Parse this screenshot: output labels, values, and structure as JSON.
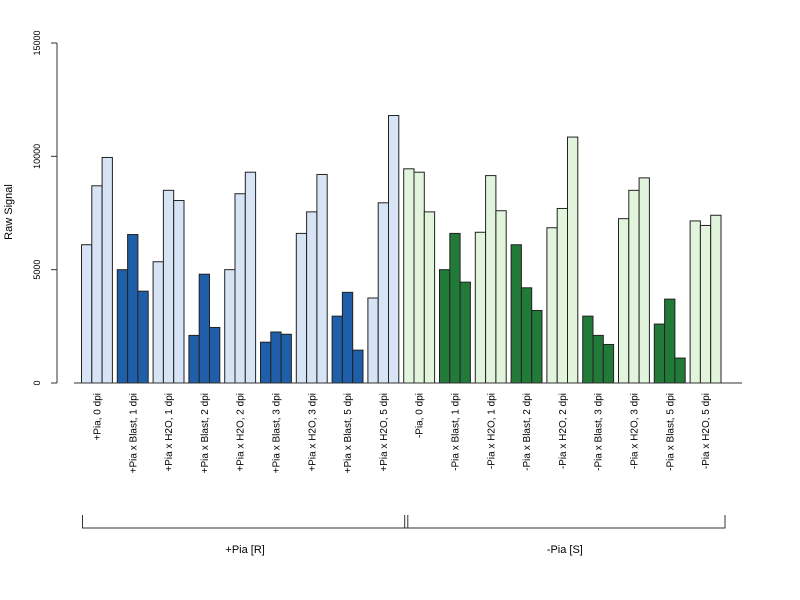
{
  "chart_data": {
    "type": "bar",
    "ylabel": "Raw Signal",
    "ylim": [
      0,
      15000
    ],
    "yticks": [
      0,
      5000,
      10000,
      15000
    ],
    "categories": [
      "+Pia, 0 dpi",
      "+Pia x Blast, 1 dpi",
      "+Pia x H2O, 1 dpi",
      "+Pia x Blast, 2 dpi",
      "+Pia x H2O, 2 dpi",
      "+Pia x Blast, 3 dpi",
      "+Pia x H2O, 3 dpi",
      "+Pia x Blast, 5 dpi",
      "+Pia x H2O, 5 dpi",
      "-Pia, 0 dpi",
      "-Pia x Blast, 1 dpi",
      "-Pia x H2O, 1 dpi",
      "-Pia x Blast, 2 dpi",
      "-Pia x H2O, 2 dpi",
      "-Pia x Blast, 3 dpi",
      "-Pia x H2O, 3 dpi",
      "-Pia x Blast, 5 dpi",
      "-Pia x H2O, 5 dpi"
    ],
    "replicates": [
      [
        6100,
        8700,
        9950
      ],
      [
        5000,
        6550,
        4050
      ],
      [
        5350,
        8500,
        8050
      ],
      [
        2100,
        4800,
        2450
      ],
      [
        5000,
        8350,
        9300
      ],
      [
        1800,
        2250,
        2150
      ],
      [
        6600,
        7550,
        9200
      ],
      [
        2950,
        4000,
        1450
      ],
      [
        3750,
        7950,
        11800
      ],
      [
        9450,
        9300,
        7550
      ],
      [
        5000,
        6600,
        4450
      ],
      [
        6650,
        9150,
        7600
      ],
      [
        6100,
        4200,
        3200
      ],
      [
        6850,
        7700,
        10850
      ],
      [
        2950,
        2100,
        1700
      ],
      [
        7250,
        8500,
        9050
      ],
      [
        2600,
        3700,
        1100
      ],
      [
        7150,
        6950,
        7400
      ]
    ],
    "bar_colors": [
      "#d6e4f5",
      "#1f5ea8",
      "#d6e4f5",
      "#1f5ea8",
      "#d6e4f5",
      "#1f5ea8",
      "#d6e4f5",
      "#1f5ea8",
      "#d6e4f5",
      "#e2f5dc",
      "#217a37",
      "#e2f5dc",
      "#217a37",
      "#e2f5dc",
      "#217a37",
      "#e2f5dc",
      "#217a37",
      "#e2f5dc"
    ],
    "groups": [
      {
        "label": "+Pia [R]",
        "first": 0,
        "last": 8
      },
      {
        "label": "-Pia [S]",
        "first": 9,
        "last": 17
      }
    ],
    "grid": false
  }
}
